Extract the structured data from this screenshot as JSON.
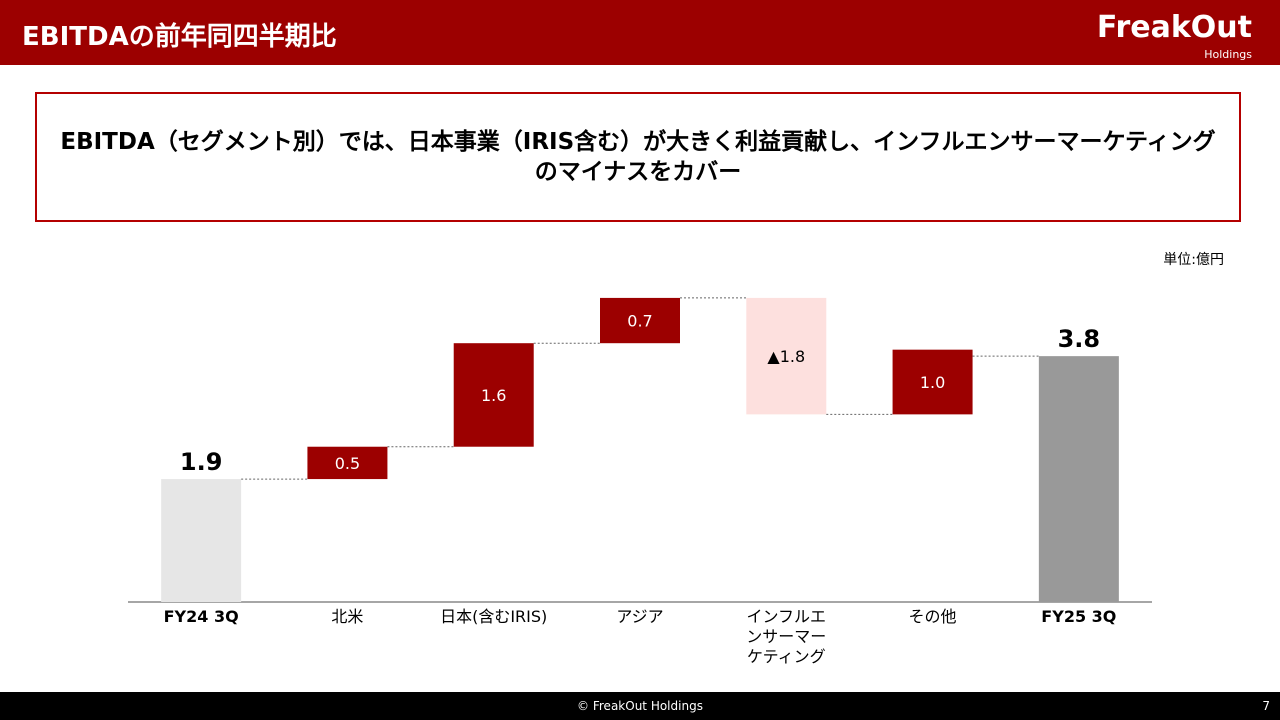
{
  "header": {
    "title": "EBITDAの前年同四半期比",
    "logo": "FreakOut",
    "logo_sub": "Holdings"
  },
  "message": "EBITDA（セグメント別）では、日本事業（IRIS含む）が大きく利益貢献し、インフルエンサーマーケティングのマイナスをカバー",
  "unit": "単位:億円",
  "chart_data": {
    "type": "waterfall",
    "categories": [
      "FY24 3Q",
      "北米",
      "日本(含むIRIS)",
      "アジア",
      "インフルエンサーマーケティング",
      "その他",
      "FY25 3Q"
    ],
    "values": [
      1.9,
      0.5,
      1.6,
      0.7,
      -1.8,
      1.0,
      3.8
    ],
    "value_labels": [
      "1.9",
      "0.5",
      "1.6",
      "0.7",
      "▲1.8",
      "1.0",
      "3.8"
    ],
    "kinds": [
      "total",
      "delta",
      "delta",
      "delta",
      "delta",
      "delta",
      "total"
    ],
    "colors": {
      "start": "#e6e6e6",
      "end": "#999999",
      "increase": "#9c0000",
      "decrease": "#fde0de"
    }
  },
  "footer": {
    "copyright": "© FreakOut Holdings",
    "page": "7"
  }
}
